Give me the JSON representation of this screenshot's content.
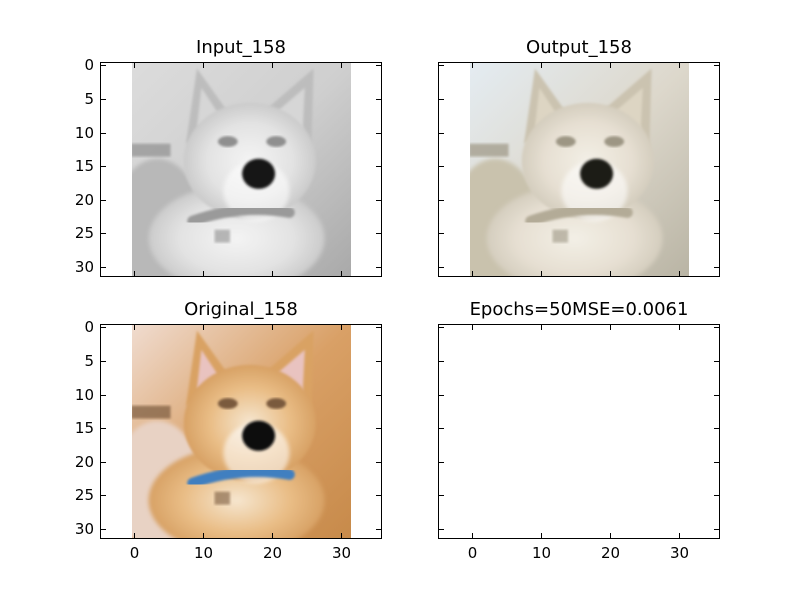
{
  "chart_data": [
    {
      "type": "image",
      "title": "Input_158",
      "image_content": "grayscale dog",
      "x_ticks": [
        0,
        10,
        20,
        30
      ],
      "y_ticks": [
        0,
        5,
        10,
        15,
        20,
        25,
        30
      ],
      "xlim": [
        -5,
        36
      ],
      "ylim": [
        31.5,
        -0.5
      ],
      "show_x_tick_labels": false,
      "show_y_tick_labels": true
    },
    {
      "type": "image",
      "title": "Output_158",
      "image_content": "reconstructed dog",
      "x_ticks": [
        0,
        10,
        20,
        30
      ],
      "y_ticks": [
        0,
        5,
        10,
        15,
        20,
        25,
        30
      ],
      "xlim": [
        -5,
        36
      ],
      "ylim": [
        31.5,
        -0.5
      ],
      "show_x_tick_labels": false,
      "show_y_tick_labels": false
    },
    {
      "type": "image",
      "title": "Original_158",
      "image_content": "color dog",
      "x_ticks": [
        0,
        10,
        20,
        30
      ],
      "y_ticks": [
        0,
        5,
        10,
        15,
        20,
        25,
        30
      ],
      "xlim": [
        -5,
        36
      ],
      "ylim": [
        31.5,
        -0.5
      ],
      "show_x_tick_labels": true,
      "show_y_tick_labels": true
    },
    {
      "type": "empty",
      "title": "Epochs=50MSE=0.0061",
      "x_ticks": [
        0,
        10,
        20,
        30
      ],
      "y_ticks": [
        0,
        5,
        10,
        15,
        20,
        25,
        30
      ],
      "xlim": [
        -5,
        36
      ],
      "ylim": [
        31.5,
        -0.5
      ],
      "show_x_tick_labels": true,
      "show_y_tick_labels": false
    }
  ]
}
